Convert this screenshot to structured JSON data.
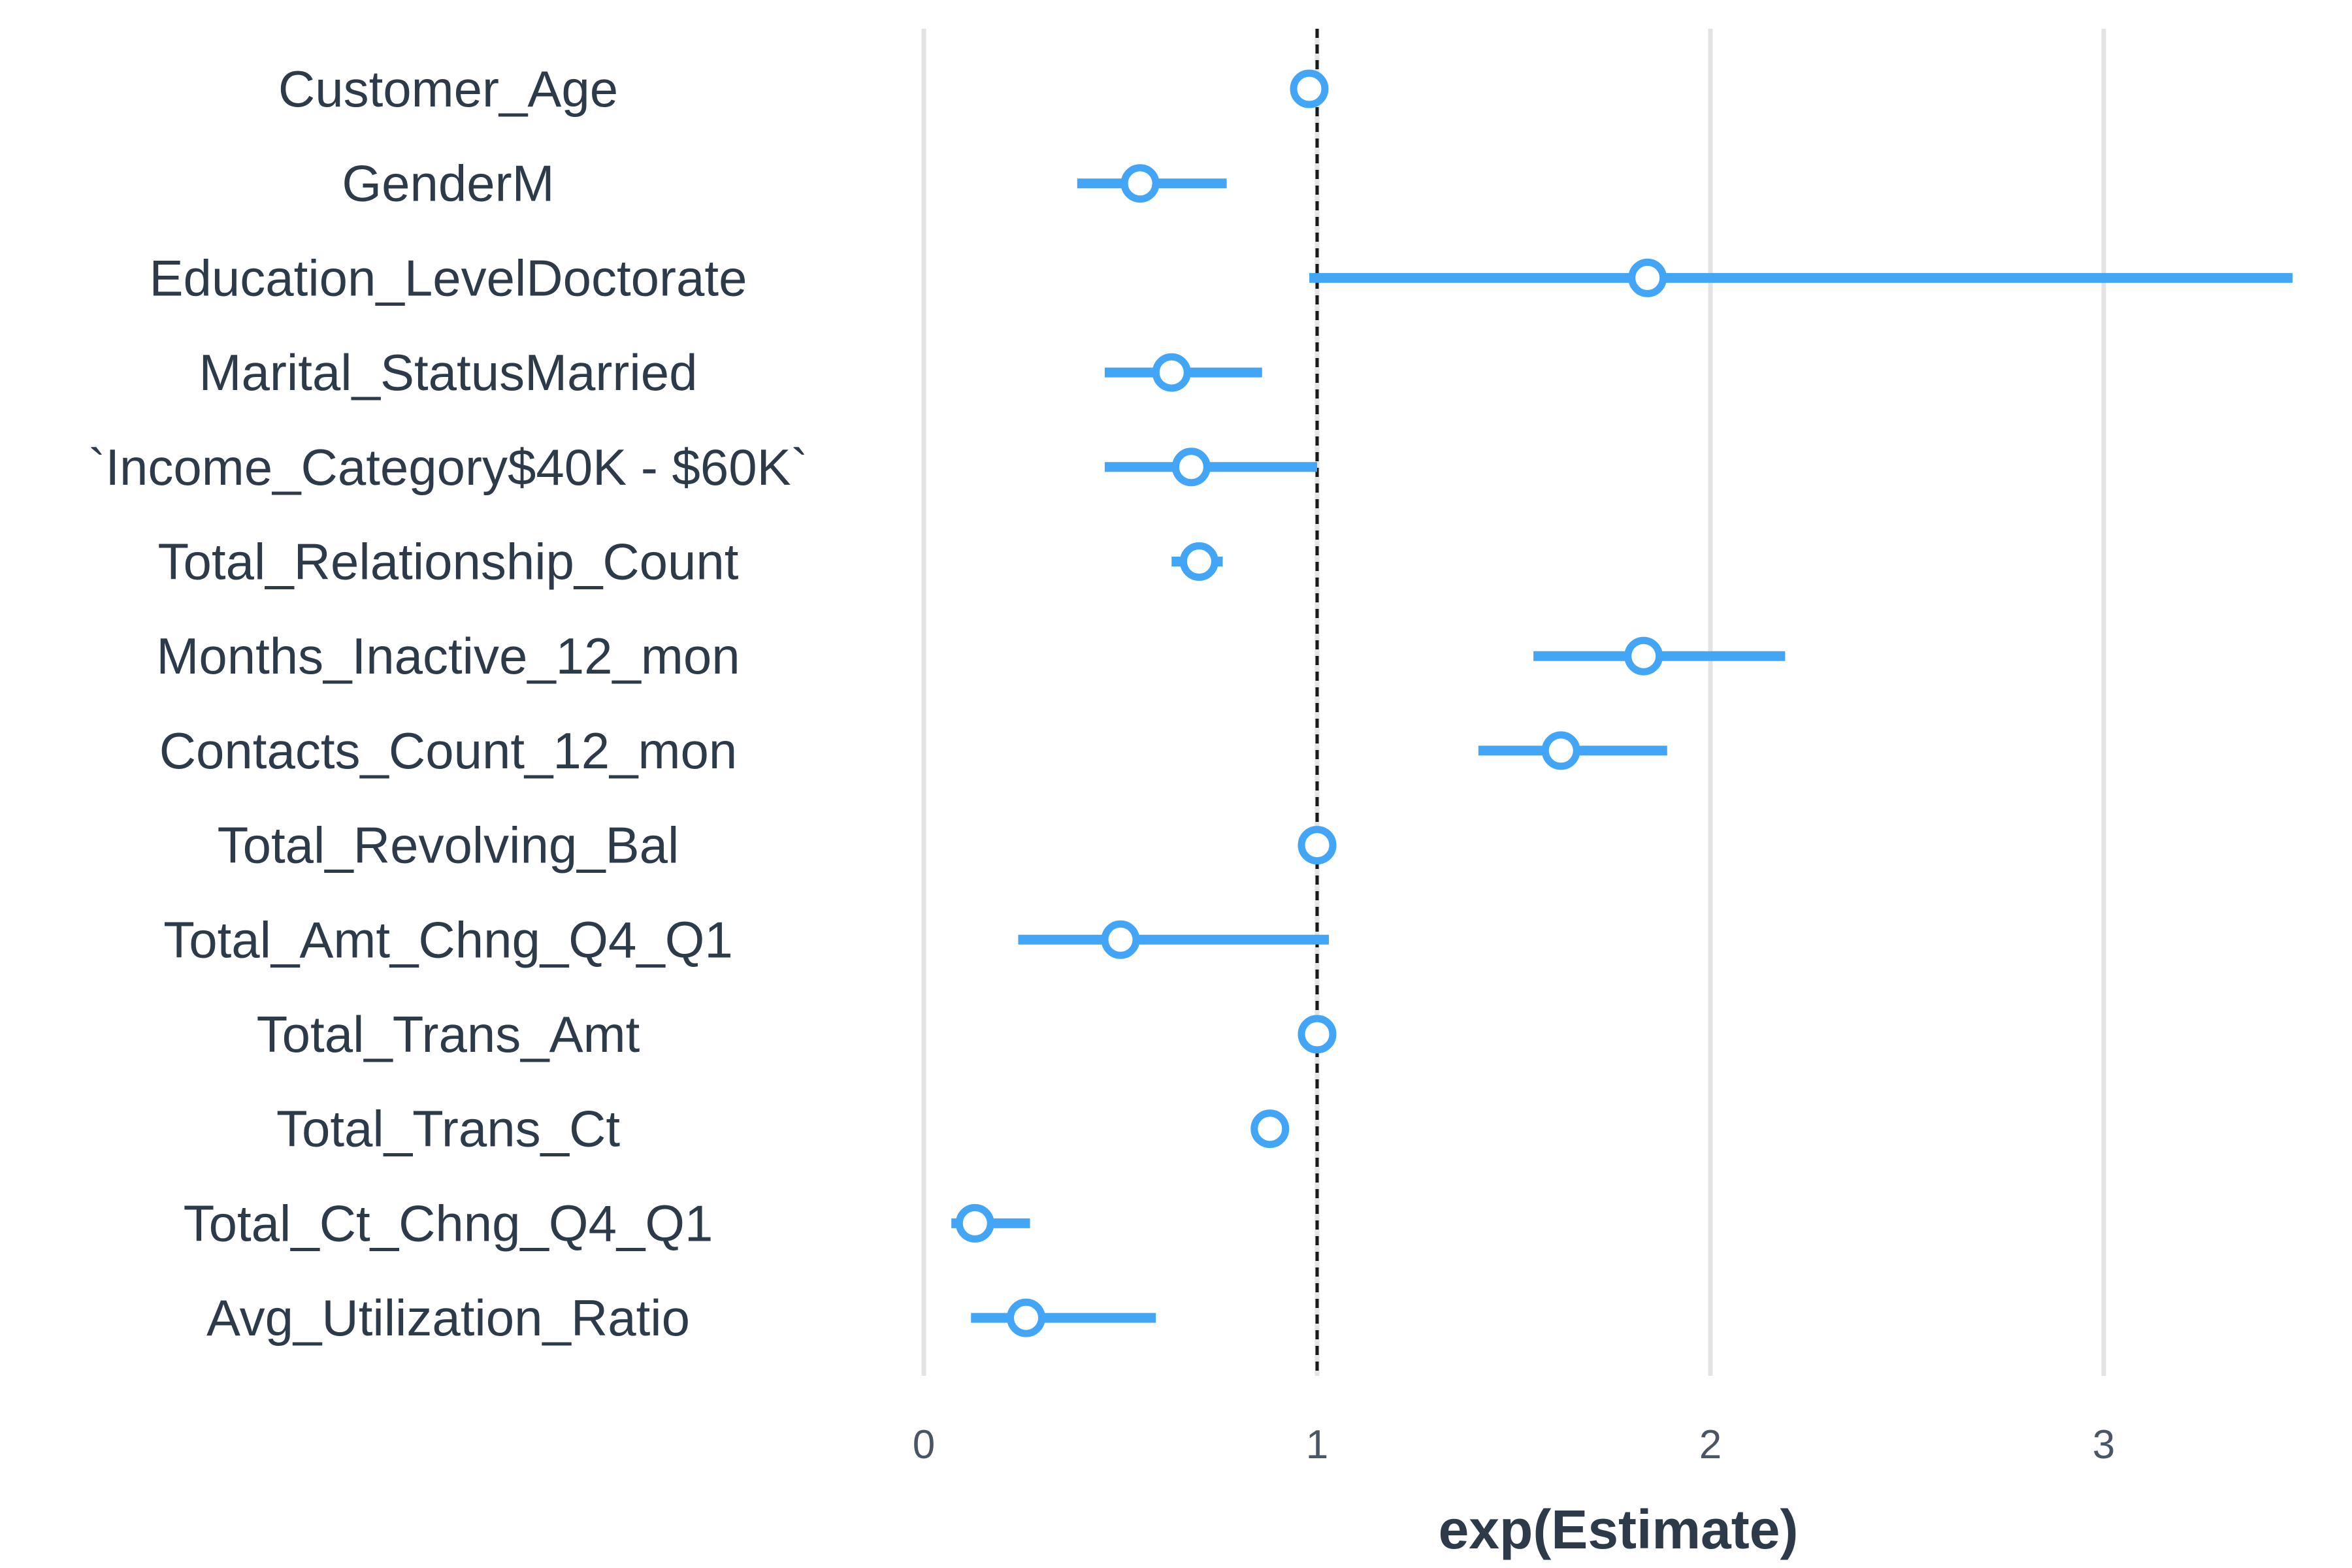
{
  "chart_data": {
    "type": "scatter",
    "subtype": "coefficient-dot-whisker",
    "xlabel": "exp(Estimate)",
    "xlim": [
      0,
      3.5
    ],
    "xticks": [
      "0",
      "1",
      "2",
      "3"
    ],
    "reference_line": 1,
    "grid": "vertical major",
    "color": "#42a5f5",
    "terms": [
      {
        "label": "Customer_Age",
        "estimate": 0.98,
        "low": 0.96,
        "high": 1.01
      },
      {
        "label": "GenderM",
        "estimate": 0.55,
        "low": 0.39,
        "high": 0.77
      },
      {
        "label": "Education_LevelDoctorate",
        "estimate": 1.84,
        "low": 0.98,
        "high": 3.48
      },
      {
        "label": "Marital_StatusMarried",
        "estimate": 0.63,
        "low": 0.46,
        "high": 0.86
      },
      {
        "label": "`Income_Category$40K - $60K`",
        "estimate": 0.68,
        "low": 0.46,
        "high": 1.0
      },
      {
        "label": "Total_Relationship_Count",
        "estimate": 0.7,
        "low": 0.63,
        "high": 0.76
      },
      {
        "label": "Months_Inactive_12_mon",
        "estimate": 1.83,
        "low": 1.55,
        "high": 2.19
      },
      {
        "label": "Contacts_Count_12_mon",
        "estimate": 1.62,
        "low": 1.41,
        "high": 1.89
      },
      {
        "label": "Total_Revolving_Bal",
        "estimate": 1.0,
        "low": 1.0,
        "high": 1.0
      },
      {
        "label": "Total_Amt_Chng_Q4_Q1",
        "estimate": 0.5,
        "low": 0.24,
        "high": 1.03
      },
      {
        "label": "Total_Trans_Amt",
        "estimate": 1.0,
        "low": 1.0,
        "high": 1.0
      },
      {
        "label": "Total_Trans_Ct",
        "estimate": 0.88,
        "low": 0.87,
        "high": 0.89
      },
      {
        "label": "Total_Ct_Chng_Q4_Q1",
        "estimate": 0.13,
        "low": 0.07,
        "high": 0.27
      },
      {
        "label": "Avg_Utilization_Ratio",
        "estimate": 0.26,
        "low": 0.12,
        "high": 0.59
      }
    ]
  }
}
